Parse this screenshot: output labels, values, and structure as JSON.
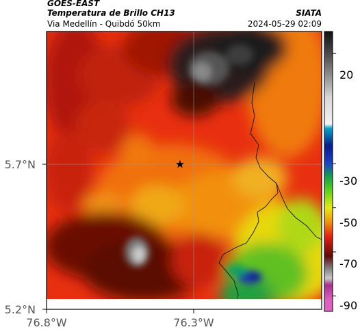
{
  "header": {
    "satellite": "GOES-EAST",
    "product": "Temperatura de Brillo CH13",
    "route": "Via Medellín - Quibdó 50km",
    "org": "SIATA",
    "datetime": "2024-05-29 02:09"
  },
  "axes": {
    "lat_ticks": [
      "5.7°N",
      "5.2°N"
    ],
    "lon_ticks": [
      "76.8°W",
      "76.3°W"
    ]
  },
  "colorbar": {
    "ticks": [
      "20",
      "-30",
      "-50",
      "-70",
      "-90"
    ],
    "stops": [
      {
        "v": 30,
        "c": "#111111"
      },
      {
        "v": 20,
        "c": "#4a4a4a"
      },
      {
        "v": 10,
        "c": "#8f8f8f"
      },
      {
        "v": 0,
        "c": "#d8d8d8"
      },
      {
        "v": -12,
        "c": "#f2f2f2"
      },
      {
        "v": -14,
        "c": "#00a0c8"
      },
      {
        "v": -22,
        "c": "#0a1a8c"
      },
      {
        "v": -30,
        "c": "#1a44c8"
      },
      {
        "v": -36,
        "c": "#16a04a"
      },
      {
        "v": -42,
        "c": "#5ad01c"
      },
      {
        "v": -50,
        "c": "#e6ea10"
      },
      {
        "v": -56,
        "c": "#f09a0c"
      },
      {
        "v": -63,
        "c": "#e82010"
      },
      {
        "v": -72,
        "c": "#5c0a06"
      },
      {
        "v": -78,
        "c": "#888888"
      },
      {
        "v": -82,
        "c": "#c8c8c8"
      },
      {
        "v": -85,
        "c": "#a83090"
      },
      {
        "v": -92,
        "c": "#e060c0"
      }
    ]
  },
  "marker": {
    "name": "star"
  }
}
